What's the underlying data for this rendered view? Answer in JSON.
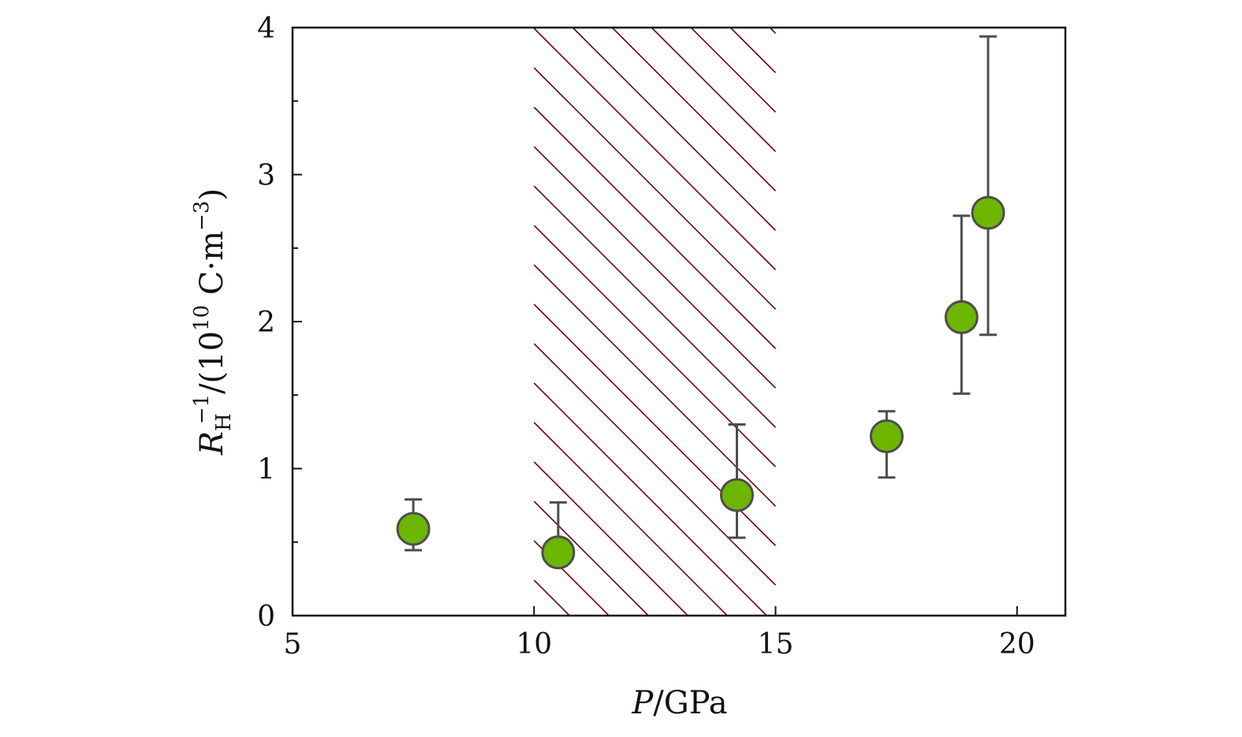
{
  "chart_data": {
    "type": "scatter",
    "xlabel": {
      "italic": "P",
      "rest": "/GPa"
    },
    "ylabel": {
      "italic": "R",
      "sub": "H",
      "sup": "−1",
      "rest1": "/(10",
      "sup2": "10",
      "rest2": " C·m",
      "sup3": "−3",
      "rest3": ")"
    },
    "xlim": [
      5,
      21
    ],
    "ylim": [
      0,
      4
    ],
    "xticks": [
      5,
      10,
      15,
      20
    ],
    "yticks": [
      0,
      1,
      2,
      3,
      4
    ],
    "yminor": [
      0.5,
      1.5,
      2.5,
      3.5
    ],
    "grid": false,
    "hatched_region": {
      "x": [
        10,
        15
      ],
      "color": "#6b0a0a"
    },
    "marker_color": "#6db600",
    "marker_edge": "#4d4d4d",
    "points": [
      {
        "x": 7.5,
        "y": 0.59,
        "yerr_low": 0.445,
        "yerr_high": 0.79
      },
      {
        "x": 10.5,
        "y": 0.43,
        "yerr_low": 0.36,
        "yerr_high": 0.77
      },
      {
        "x": 14.2,
        "y": 0.82,
        "yerr_low": 0.53,
        "yerr_high": 1.3
      },
      {
        "x": 17.3,
        "y": 1.22,
        "yerr_low": 0.94,
        "yerr_high": 1.39
      },
      {
        "x": 18.85,
        "y": 2.03,
        "yerr_low": 1.51,
        "yerr_high": 2.72
      },
      {
        "x": 19.4,
        "y": 2.74,
        "yerr_low": 1.91,
        "yerr_high": 3.94
      }
    ]
  }
}
